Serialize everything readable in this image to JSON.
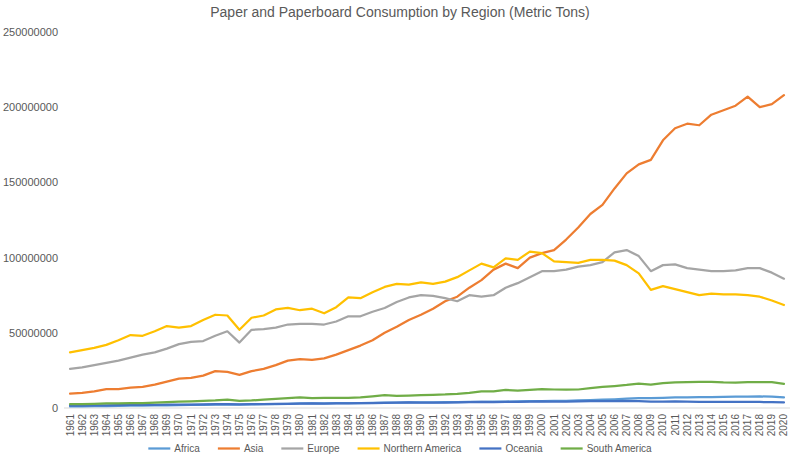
{
  "chart_data": {
    "type": "line",
    "title": "Paper and Paperboard Consumption by Region (Metric Tons)",
    "categories": [
      "1961",
      "1962",
      "1963",
      "1964",
      "1965",
      "1966",
      "1967",
      "1968",
      "1969",
      "1970",
      "1971",
      "1972",
      "1973",
      "1974",
      "1975",
      "1976",
      "1977",
      "1978",
      "1979",
      "1980",
      "1981",
      "1982",
      "1983",
      "1984",
      "1985",
      "1986",
      "1987",
      "1988",
      "1989",
      "1990",
      "1991",
      "1992",
      "1993",
      "1994",
      "1995",
      "1996",
      "1997",
      "1998",
      "1999",
      "2000",
      "2001",
      "2002",
      "2003",
      "2004",
      "2005",
      "2006",
      "2007",
      "2008",
      "2009",
      "2010",
      "2011",
      "2012",
      "2013",
      "2014",
      "2015",
      "2016",
      "2017",
      "2018",
      "2019",
      "2020"
    ],
    "ylim": [
      0,
      250000000
    ],
    "yticks": [
      0,
      50000000,
      100000000,
      150000000,
      200000000,
      250000000
    ],
    "grid": false,
    "legend": "bottom",
    "series": [
      {
        "name": "Africa",
        "color": "#5b9bd5",
        "values": [
          1000000,
          1100000,
          1200000,
          1300000,
          1400000,
          1500000,
          1600000,
          1700000,
          1800000,
          1900000,
          2000000,
          2100000,
          2300000,
          2400000,
          2300000,
          2400000,
          2500000,
          2600000,
          2800000,
          3000000,
          3100000,
          3100000,
          3200000,
          3300000,
          3300000,
          3400000,
          3500000,
          3600000,
          3700000,
          3800000,
          3800000,
          3900000,
          3900000,
          4000000,
          4100000,
          4200000,
          4300000,
          4400000,
          4500000,
          4600000,
          4700000,
          4800000,
          5000000,
          5300000,
          5500000,
          5800000,
          6200000,
          6500000,
          6500000,
          6800000,
          7000000,
          7100000,
          7200000,
          7300000,
          7400000,
          7500000,
          7600000,
          7700000,
          7500000,
          7000000
        ]
      },
      {
        "name": "Asia",
        "color": "#ed7d31",
        "values": [
          9500000,
          10000000,
          11000000,
          12500000,
          12500000,
          13500000,
          14000000,
          15500000,
          17500000,
          19500000,
          20000000,
          21500000,
          24500000,
          24000000,
          22000000,
          24500000,
          26000000,
          28500000,
          31500000,
          32500000,
          32000000,
          33000000,
          35500000,
          38500000,
          41500000,
          45000000,
          50000000,
          54000000,
          58500000,
          62000000,
          66000000,
          71000000,
          74000000,
          80000000,
          85000000,
          92000000,
          96000000,
          93000000,
          100000000,
          103000000,
          105000000,
          112000000,
          120000000,
          129000000,
          135000000,
          146000000,
          156000000,
          162000000,
          165000000,
          178000000,
          186000000,
          189000000,
          188000000,
          195000000,
          198000000,
          201000000,
          207000000,
          200000000,
          202000000,
          208000000
        ]
      },
      {
        "name": "Europe",
        "color": "#a5a5a5",
        "values": [
          26000000,
          27000000,
          28500000,
          30000000,
          31500000,
          33500000,
          35500000,
          37000000,
          39500000,
          42500000,
          44000000,
          44500000,
          48000000,
          51000000,
          43500000,
          52000000,
          52500000,
          53500000,
          55500000,
          56000000,
          56000000,
          55500000,
          57500000,
          61000000,
          61000000,
          64000000,
          66500000,
          70500000,
          73500000,
          75000000,
          74500000,
          73000000,
          71000000,
          75000000,
          74000000,
          75000000,
          80000000,
          83000000,
          87000000,
          91000000,
          91000000,
          92000000,
          94000000,
          95000000,
          97000000,
          103500000,
          105000000,
          101000000,
          91000000,
          95000000,
          95500000,
          93000000,
          92000000,
          91000000,
          91000000,
          91500000,
          93000000,
          93000000,
          90000000,
          86000000
        ]
      },
      {
        "name": "Northern America",
        "color": "#ffc000",
        "values": [
          37000000,
          38500000,
          40000000,
          42000000,
          45000000,
          48500000,
          48000000,
          51000000,
          54500000,
          53500000,
          54500000,
          58500000,
          62000000,
          61500000,
          52000000,
          60000000,
          61500000,
          65500000,
          66500000,
          65000000,
          66000000,
          63000000,
          67000000,
          73500000,
          73000000,
          77000000,
          80500000,
          82500000,
          82000000,
          83500000,
          82500000,
          84000000,
          87000000,
          91500000,
          96000000,
          93500000,
          99500000,
          98500000,
          104000000,
          103000000,
          97500000,
          97000000,
          96500000,
          98500000,
          98500000,
          98000000,
          95000000,
          89500000,
          78500000,
          81000000,
          79000000,
          77000000,
          75000000,
          76000000,
          75500000,
          75500000,
          75000000,
          74000000,
          71500000,
          68500000
        ]
      },
      {
        "name": "Oceania",
        "color": "#4472c4",
        "values": [
          1500000,
          1600000,
          1700000,
          1800000,
          1900000,
          2000000,
          2000000,
          2100000,
          2200000,
          2300000,
          2300000,
          2400000,
          2500000,
          2600000,
          2400000,
          2500000,
          2600000,
          2700000,
          2800000,
          2900000,
          3000000,
          2900000,
          3000000,
          3100000,
          3200000,
          3300000,
          3400000,
          3600000,
          3700000,
          3600000,
          3500000,
          3600000,
          3700000,
          3900000,
          4000000,
          3900000,
          4000000,
          4100000,
          4300000,
          4400000,
          4300000,
          4300000,
          4400000,
          4500000,
          4600000,
          4600000,
          4700000,
          4600000,
          4200000,
          4300000,
          4400000,
          4200000,
          4100000,
          4100000,
          4100000,
          4000000,
          4000000,
          4000000,
          3900000,
          3700000
        ]
      },
      {
        "name": "South America",
        "color": "#70ad47",
        "values": [
          2500000,
          2600000,
          2800000,
          3000000,
          3000000,
          3200000,
          3300000,
          3600000,
          3900000,
          4200000,
          4400000,
          4700000,
          5000000,
          5500000,
          4700000,
          5000000,
          5500000,
          6000000,
          6500000,
          7000000,
          6500000,
          6800000,
          6700000,
          6800000,
          7000000,
          7800000,
          8500000,
          8000000,
          8200000,
          8500000,
          8800000,
          9000000,
          9400000,
          10000000,
          11000000,
          11000000,
          12000000,
          11500000,
          12000000,
          12500000,
          12300000,
          12200000,
          12300000,
          13200000,
          14000000,
          14600000,
          15300000,
          16200000,
          15600000,
          16600000,
          17000000,
          17200000,
          17400000,
          17400000,
          17000000,
          16900000,
          17200000,
          17200000,
          17200000,
          16000000
        ]
      }
    ]
  }
}
